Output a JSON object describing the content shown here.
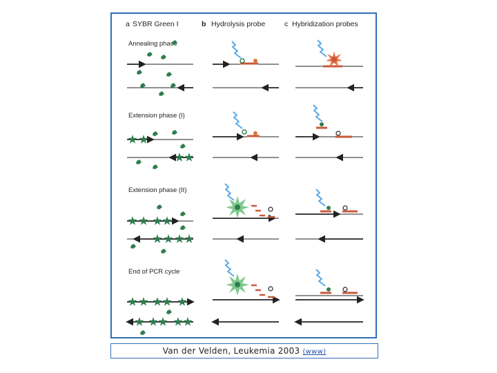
{
  "figure": {
    "panels": [
      {
        "letter": "a",
        "title": "SYBR Green I"
      },
      {
        "letter": "b",
        "title": "Hydrolysis probe"
      },
      {
        "letter": "c",
        "title": "Hybridization probes"
      }
    ],
    "phases": [
      "Annealing phase",
      "Extension phase (I)",
      "Extension phase (II)",
      "End of PCR cycle"
    ],
    "colors": {
      "strand": "#222222",
      "dye": "#2e7d4f",
      "probe": "#c8593a",
      "light": "#5aa9e6",
      "frame": "#2f6fb3"
    }
  },
  "caption": {
    "text": "Van der Velden, Leukemia 2003",
    "link": "(www)"
  }
}
